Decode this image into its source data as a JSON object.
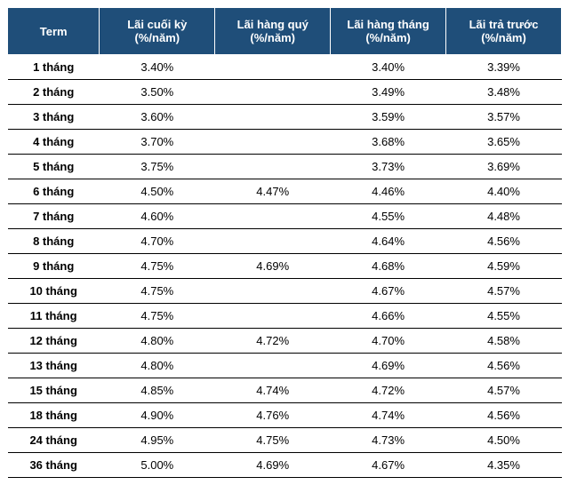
{
  "table": {
    "columns": [
      "Term",
      "Lãi cuối kỳ (%/năm)",
      "Lãi hàng quý (%/năm)",
      "Lãi hàng tháng (%/năm)",
      "Lãi trả trước (%/năm)"
    ],
    "rows": [
      {
        "term": "1 tháng",
        "end": "3.40%",
        "quarterly": "",
        "monthly": "3.40%",
        "prepaid": "3.39%"
      },
      {
        "term": "2 tháng",
        "end": "3.50%",
        "quarterly": "",
        "monthly": "3.49%",
        "prepaid": "3.48%"
      },
      {
        "term": "3 tháng",
        "end": "3.60%",
        "quarterly": "",
        "monthly": "3.59%",
        "prepaid": "3.57%"
      },
      {
        "term": "4 tháng",
        "end": "3.70%",
        "quarterly": "",
        "monthly": "3.68%",
        "prepaid": "3.65%"
      },
      {
        "term": "5 tháng",
        "end": "3.75%",
        "quarterly": "",
        "monthly": "3.73%",
        "prepaid": "3.69%"
      },
      {
        "term": "6 tháng",
        "end": "4.50%",
        "quarterly": "4.47%",
        "monthly": "4.46%",
        "prepaid": "4.40%"
      },
      {
        "term": "7 tháng",
        "end": "4.60%",
        "quarterly": "",
        "monthly": "4.55%",
        "prepaid": "4.48%"
      },
      {
        "term": "8 tháng",
        "end": "4.70%",
        "quarterly": "",
        "monthly": "4.64%",
        "prepaid": "4.56%"
      },
      {
        "term": "9 tháng",
        "end": "4.75%",
        "quarterly": "4.69%",
        "monthly": "4.68%",
        "prepaid": "4.59%"
      },
      {
        "term": "10 tháng",
        "end": "4.75%",
        "quarterly": "",
        "monthly": "4.67%",
        "prepaid": "4.57%"
      },
      {
        "term": "11 tháng",
        "end": "4.75%",
        "quarterly": "",
        "monthly": "4.66%",
        "prepaid": "4.55%"
      },
      {
        "term": "12 tháng",
        "end": "4.80%",
        "quarterly": "4.72%",
        "monthly": "4.70%",
        "prepaid": "4.58%"
      },
      {
        "term": "13 tháng",
        "end": "4.80%",
        "quarterly": "",
        "monthly": "4.69%",
        "prepaid": "4.56%"
      },
      {
        "term": "15 tháng",
        "end": "4.85%",
        "quarterly": "4.74%",
        "monthly": "4.72%",
        "prepaid": "4.57%"
      },
      {
        "term": "18 tháng",
        "end": "4.90%",
        "quarterly": "4.76%",
        "monthly": "4.74%",
        "prepaid": "4.56%"
      },
      {
        "term": "24 tháng",
        "end": "4.95%",
        "quarterly": "4.75%",
        "monthly": "4.73%",
        "prepaid": "4.50%"
      },
      {
        "term": "36 tháng",
        "end": "5.00%",
        "quarterly": "4.69%",
        "monthly": "4.67%",
        "prepaid": "4.35%"
      }
    ],
    "header_bg": "#1f4e79",
    "header_fg": "#ffffff",
    "row_border_color": "#000000"
  }
}
